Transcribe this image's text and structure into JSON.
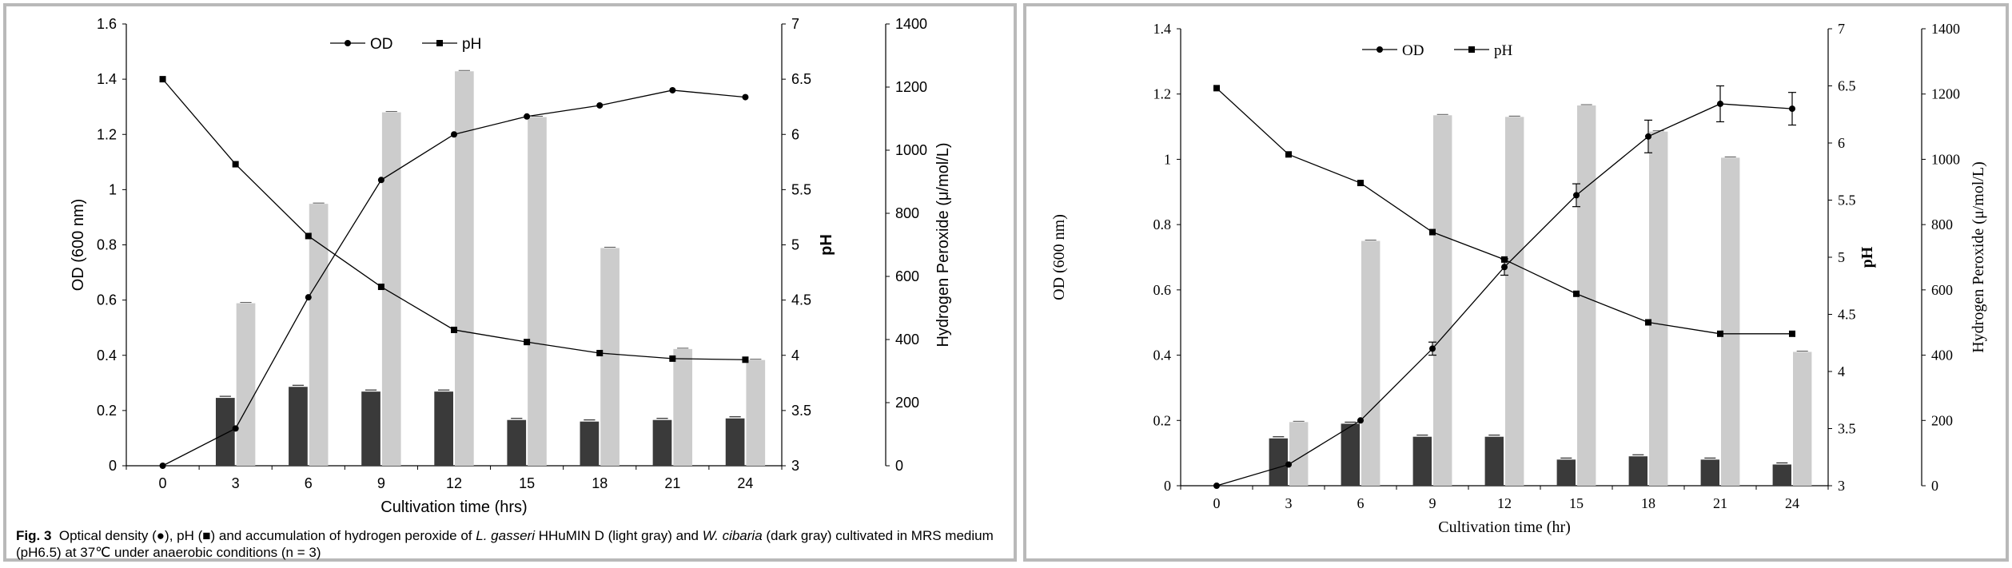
{
  "figure_caption": {
    "label": "Fig. 3",
    "part1": "Optical density (",
    "part2": "), pH (",
    "part3": ") and accumulation of hydrogen peroxide of ",
    "species1": "L. gasseri",
    "part4": " HHuMIN D (light gray) and ",
    "species2": "W. cibaria",
    "part5": " (dark gray) cultivated in MRS medium (pH6.5) at 37℃ under anaerobic conditions (n = 3)"
  },
  "colors": {
    "light_bar": "#cccccc",
    "dark_bar": "#3a3a3a",
    "line": "#000000",
    "frame": "#b9b9b9"
  },
  "chart_data": [
    {
      "type": "bar",
      "categories": [
        "0",
        "3",
        "6",
        "9",
        "12",
        "15",
        "18",
        "21",
        "24"
      ],
      "xlabel": "Cultivation time (hrs)",
      "ylabel": "OD (600 nm)",
      "y2label": "pH",
      "y3label": "Hydrogen Peroxide (μ/mol/L)",
      "ylim": [
        0,
        1.6
      ],
      "yticks": [
        "0",
        "0.2",
        "0.4",
        "0.6",
        "0.8",
        "1",
        "1.2",
        "1.4",
        "1.6"
      ],
      "y2lim": [
        3,
        7
      ],
      "y2ticks": [
        "3",
        "3.5",
        "4",
        "4.5",
        "5",
        "5.5",
        "6",
        "6.5",
        "7"
      ],
      "y3lim": [
        0,
        1400
      ],
      "y3ticks": [
        "0",
        "200",
        "400",
        "600",
        "800",
        "1000",
        "1200",
        "1400"
      ],
      "legend": {
        "od": "OD",
        "ph": "pH"
      },
      "series": [
        {
          "name": "OD",
          "kind": "line",
          "marker": "circle",
          "axis": "left",
          "values": [
            0.0,
            0.135,
            0.61,
            1.035,
            1.2,
            1.265,
            1.305,
            1.36,
            1.335
          ]
        },
        {
          "name": "pH",
          "kind": "line",
          "marker": "square",
          "axis": "pH",
          "values": [
            6.5,
            5.73,
            5.08,
            4.62,
            4.23,
            4.12,
            4.02,
            3.97,
            3.96
          ]
        },
        {
          "kind": "bar",
          "shade": "light",
          "axis": "h2o2",
          "values": [
            0,
            515,
            830,
            1120,
            1250,
            1105,
            690,
            370,
            335
          ]
        },
        {
          "kind": "bar",
          "shade": "dark",
          "axis": "h2o2",
          "values": [
            0,
            215,
            250,
            235,
            235,
            145,
            140,
            145,
            150
          ]
        }
      ]
    },
    {
      "type": "bar",
      "categories": [
        "0",
        "3",
        "6",
        "9",
        "12",
        "15",
        "18",
        "21",
        "24"
      ],
      "xlabel": "Cultivation time (hr)",
      "ylabel": "OD (600 nm)",
      "y2label": "pH",
      "y3label": "Hydrogen Peroxide (μ/mol/L)",
      "ylim": [
        0,
        1.4
      ],
      "yticks": [
        "0",
        "0.2",
        "0.4",
        "0.6",
        "0.8",
        "1",
        "1.2",
        "1.4"
      ],
      "y2lim": [
        3,
        7
      ],
      "y2ticks": [
        "3",
        "3.5",
        "4",
        "4.5",
        "5",
        "5.5",
        "6",
        "6.5",
        "7"
      ],
      "y3lim": [
        0,
        1400
      ],
      "y3ticks": [
        "0",
        "200",
        "400",
        "600",
        "800",
        "1000",
        "1200",
        "1400"
      ],
      "legend": {
        "od": "OD",
        "ph": "pH"
      },
      "series": [
        {
          "name": "OD",
          "kind": "line",
          "marker": "circle",
          "axis": "left",
          "values": [
            0.0,
            0.065,
            0.2,
            0.42,
            0.67,
            0.89,
            1.07,
            1.17,
            1.155
          ],
          "errors": [
            0,
            0,
            0,
            0.02,
            0.025,
            0.035,
            0.05,
            0.055,
            0.05
          ]
        },
        {
          "name": "pH",
          "kind": "line",
          "marker": "square",
          "axis": "pH",
          "values": [
            6.48,
            5.9,
            5.65,
            5.22,
            4.98,
            4.68,
            4.43,
            4.33,
            4.33
          ]
        },
        {
          "kind": "bar",
          "shade": "light",
          "axis": "h2o2",
          "values": [
            0,
            195,
            750,
            1135,
            1130,
            1165,
            1085,
            1005,
            410
          ]
        },
        {
          "kind": "bar",
          "shade": "dark",
          "axis": "h2o2",
          "values": [
            0,
            145,
            190,
            150,
            150,
            80,
            90,
            80,
            65
          ]
        }
      ]
    }
  ]
}
